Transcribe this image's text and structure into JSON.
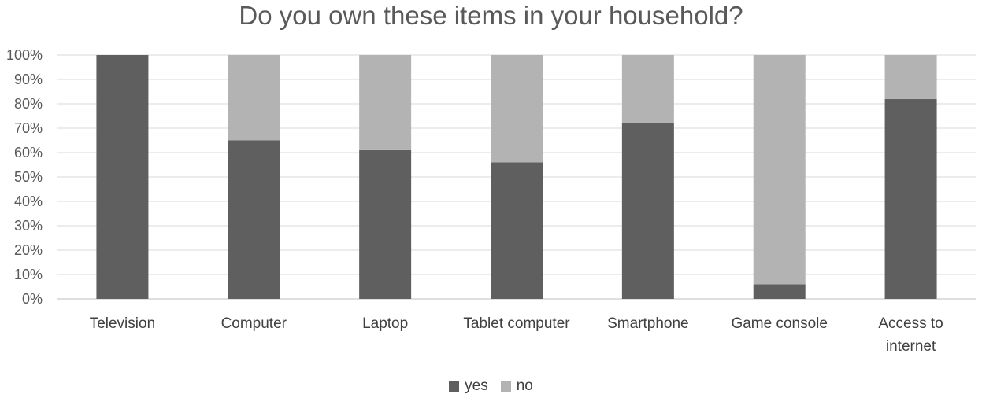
{
  "chart_data": {
    "type": "bar",
    "stacked": true,
    "title": "Do you own these items in your household?",
    "categories": [
      "Television",
      "Computer",
      "Laptop",
      "Tablet computer",
      "Smartphone",
      "Game console",
      "Access to internet"
    ],
    "series": [
      {
        "name": "yes",
        "color": "#5f5f5f",
        "values": [
          100,
          65,
          61,
          56,
          72,
          6,
          82
        ]
      },
      {
        "name": "no",
        "color": "#b3b3b3",
        "values": [
          0,
          35,
          39,
          44,
          28,
          94,
          18
        ]
      }
    ],
    "ylim": [
      0,
      100
    ],
    "yticks": [
      "0%",
      "10%",
      "20%",
      "30%",
      "40%",
      "50%",
      "60%",
      "70%",
      "80%",
      "90%",
      "100%"
    ],
    "grid": true,
    "legend_position": "bottom"
  }
}
